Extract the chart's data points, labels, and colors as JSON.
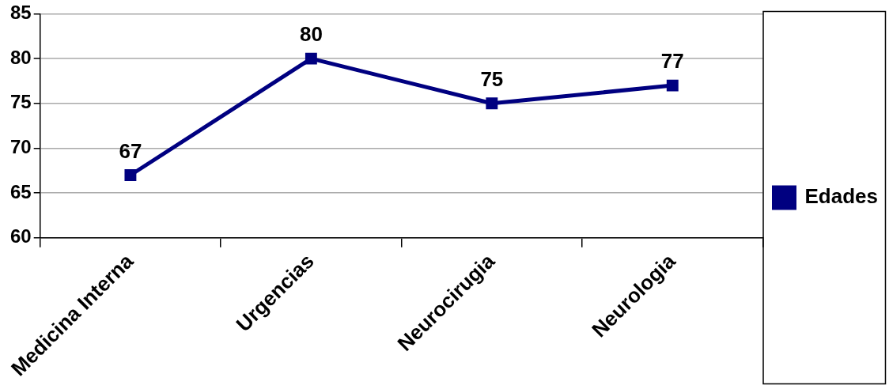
{
  "chart_data": {
    "type": "line",
    "categories": [
      "Medicina Interna",
      "Urgencias",
      "Neurocirugia",
      "Neurologia"
    ],
    "series": [
      {
        "name": "Edades",
        "color": "#000080",
        "values": [
          67,
          80,
          75,
          77
        ]
      }
    ],
    "ylim": [
      60,
      85
    ],
    "yticks": [
      60,
      65,
      70,
      75,
      80,
      85
    ],
    "grid": "y",
    "legend": "right",
    "marker": "square",
    "data_labels": true
  }
}
